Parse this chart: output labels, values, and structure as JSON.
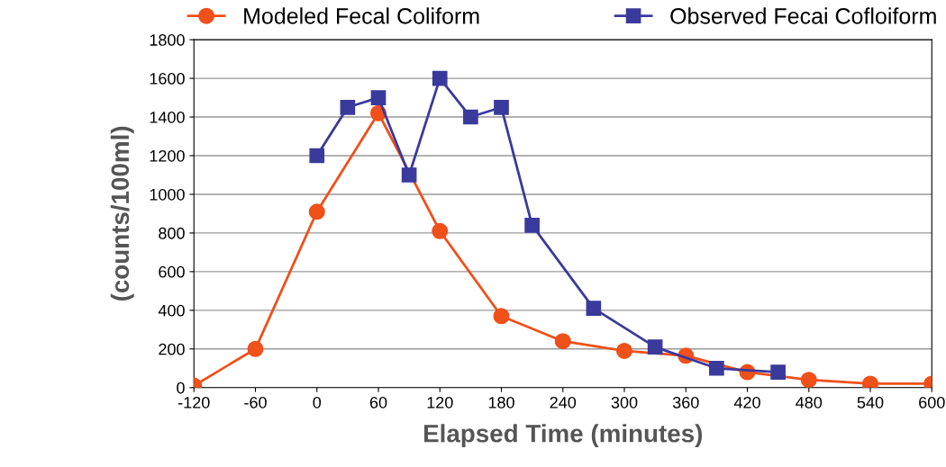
{
  "chart_data": {
    "type": "line",
    "xlabel": "Elapsed Time (minutes)",
    "ylabel": "(counts/100ml)",
    "xlim": [
      -120,
      600
    ],
    "xticks": [
      -120,
      -60,
      0,
      60,
      120,
      180,
      240,
      300,
      360,
      420,
      480,
      540,
      600
    ],
    "ylim": [
      0,
      1800
    ],
    "yticks": [
      0,
      200,
      400,
      600,
      800,
      1000,
      1200,
      1400,
      1600,
      1800
    ],
    "grid": "y",
    "legend": "top",
    "line_style": "solid",
    "series": [
      {
        "name": "Modeled Fecal Coliform",
        "color": "#f0501a",
        "marker": "circle",
        "x": [
          -120,
          -60,
          0,
          60,
          120,
          180,
          240,
          300,
          360,
          420,
          480,
          540,
          600
        ],
        "values": [
          10,
          200,
          910,
          1420,
          810,
          370,
          240,
          190,
          165,
          80,
          40,
          20,
          20
        ]
      },
      {
        "name": "Observed Fecai Cofloiform",
        "color": "#3a3a9c",
        "marker": "square",
        "x": [
          0,
          30,
          60,
          90,
          120,
          150,
          180,
          210,
          270,
          330,
          390,
          450
        ],
        "values": [
          1200,
          1450,
          1500,
          1100,
          1600,
          1400,
          1450,
          840,
          410,
          210,
          100,
          80
        ]
      }
    ]
  }
}
